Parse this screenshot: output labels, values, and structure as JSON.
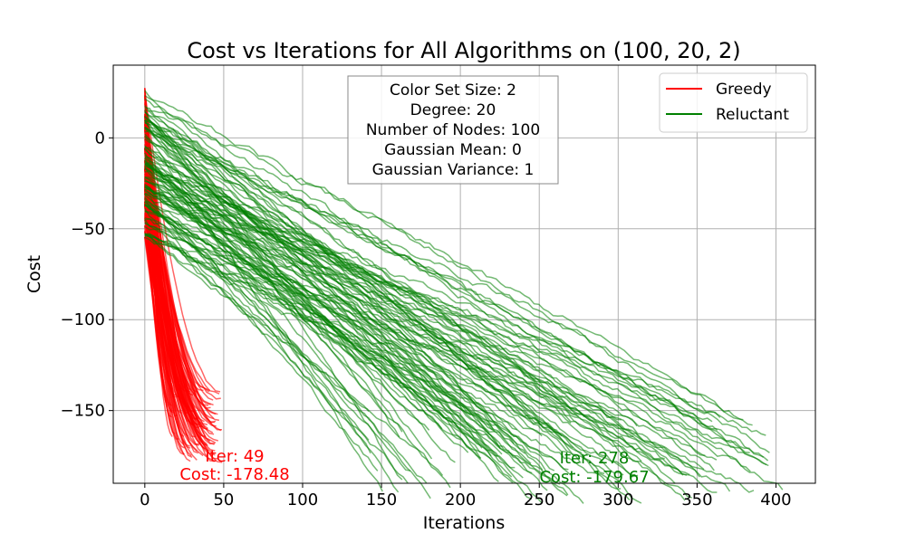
{
  "chart_data": {
    "type": "line",
    "title": "Cost vs Iterations for All Algorithms on (100, 20, 2)",
    "xlabel": "Iterations",
    "ylabel": "Cost",
    "xlim": [
      -20,
      425
    ],
    "ylim": [
      -190,
      40
    ],
    "xticks": [
      0,
      50,
      100,
      150,
      200,
      250,
      300,
      350,
      400
    ],
    "xtick_labels": [
      "0",
      "50",
      "100",
      "150",
      "200",
      "250",
      "300",
      "350",
      "400"
    ],
    "yticks": [
      0,
      -50,
      -100,
      -150
    ],
    "ytick_labels": [
      "0",
      "−50",
      "−100",
      "−150"
    ],
    "grid": true,
    "legend_position": "top-right",
    "info_box": [
      "Color Set Size: 2",
      "Degree: 20",
      "Number of Nodes: 100",
      "Gaussian Mean: 0",
      "Gaussian Variance: 1"
    ],
    "series": [
      {
        "name": "Greedy",
        "color": "#ff0000",
        "runs": 100,
        "start_range": [
          -55,
          28
        ],
        "end_iter_range": [
          17,
          49
        ],
        "end_cost_range": [
          -178,
          -138
        ],
        "annotation": {
          "iter": 49,
          "cost": -178.48,
          "lines": [
            "Iter: 49",
            "Cost: -178.48"
          ]
        }
      },
      {
        "name": "Reluctant",
        "color": "#008000",
        "runs": 100,
        "start_range": [
          -55,
          28
        ],
        "end_iter_range": [
          140,
          406
        ],
        "end_cost_range": [
          -180,
          -138
        ],
        "annotation": {
          "iter": 278,
          "cost": -179.67,
          "lines": [
            "Iter: 278",
            "Cost: -179.67"
          ]
        }
      }
    ]
  }
}
